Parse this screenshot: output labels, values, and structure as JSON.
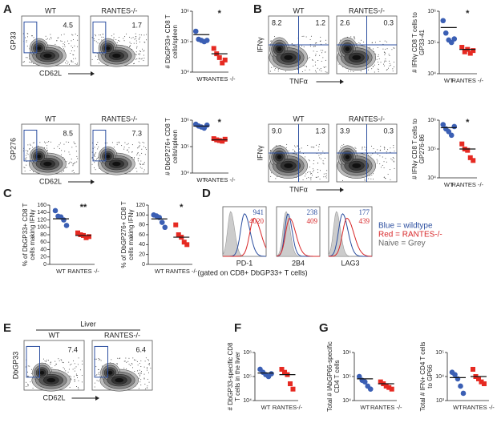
{
  "panel_labels": [
    "A",
    "B",
    "C",
    "D",
    "E",
    "F",
    "G"
  ],
  "flow_plots": [
    {
      "kind": "gate",
      "headers": [
        "WT",
        "RANTES-/-"
      ],
      "values": [
        "4.5",
        "1.7"
      ],
      "y_label": "GP33",
      "x_label": "CD62L"
    },
    {
      "kind": "gate",
      "headers": [
        "WT",
        "RANTES-/-"
      ],
      "values": [
        "8.5",
        "7.3"
      ],
      "y_label": "GP276",
      "x_label": "CD62L"
    },
    {
      "kind": "quadrant",
      "headers": [
        "WT",
        "RANTES-/-"
      ],
      "values": [
        [
          "8.2",
          "1.2"
        ],
        [
          "2.6",
          "0.3"
        ]
      ],
      "y_label": "IFNγ",
      "x_label": "TNFα"
    },
    {
      "kind": "quadrant",
      "headers": [
        "WT",
        "RANTES-/-"
      ],
      "values": [
        [
          "9.0",
          "1.3"
        ],
        [
          "3.9",
          "0.3"
        ]
      ],
      "y_label": "IFNγ",
      "x_label": "TNFα"
    },
    {
      "kind": "gate",
      "title": "Liver",
      "headers": [
        "WT",
        "RANTES-/-"
      ],
      "values": [
        "7.4",
        "6.4"
      ],
      "y_label": "DbGP33",
      "x_label": "CD62L"
    }
  ],
  "histograms": {
    "panels": [
      {
        "x_label": "PD-1",
        "values": [
          "941",
          "4020"
        ]
      },
      {
        "x_label": "2B4",
        "values": [
          "238",
          "409"
        ]
      },
      {
        "x_label": "LAG3",
        "values": [
          "177",
          "439"
        ]
      }
    ],
    "caption": "(gated on CD8+ DbGP33+ T cells)",
    "legend": [
      "Blue = wildtype",
      "Red = RANTES-/-",
      "Naive = Grey"
    ]
  },
  "chart_data": [
    {
      "type": "scatter",
      "y_label": [
        "# DbGP33+ CD8 T",
        "cells/spleen"
      ],
      "categories": [
        "WT",
        "RANTES -/-"
      ],
      "log_scale": true,
      "ylim": [
        10000,
        1000000
      ],
      "yticks": [
        {
          "value": 10000,
          "label": "10⁴"
        },
        {
          "value": 100000,
          "label": "10⁵"
        },
        {
          "value": 1000000,
          "label": "10⁶"
        }
      ],
      "significance": "*",
      "series": [
        {
          "color": "#3b5fb4",
          "marker": "circle",
          "values": [
            220000,
            120000,
            110000,
            100000,
            110000
          ],
          "mean": 170000
        },
        {
          "color": "#e62a22",
          "marker": "square",
          "values": [
            60000,
            40000,
            30000,
            20000,
            25000
          ],
          "mean": 40000
        }
      ]
    },
    {
      "type": "scatter",
      "y_label": [
        "# DbGP276+ CD8 T",
        "cells/spleen"
      ],
      "categories": [
        "WT",
        "RANTES -/-"
      ],
      "log_scale": true,
      "ylim": [
        10000,
        1000000
      ],
      "yticks": [
        {
          "value": 10000,
          "label": "10⁴"
        },
        {
          "value": 100000,
          "label": "10⁵"
        },
        {
          "value": 1000000,
          "label": "10⁶"
        }
      ],
      "significance": "*",
      "series": [
        {
          "color": "#3b5fb4",
          "marker": "circle",
          "values": [
            700000,
            600000,
            550000,
            500000,
            650000
          ],
          "mean": 600000
        },
        {
          "color": "#e62a22",
          "marker": "square",
          "values": [
            200000,
            180000,
            170000,
            160000,
            190000
          ],
          "mean": 180000
        }
      ]
    },
    {
      "type": "scatter",
      "y_label": [
        "# IFNγ CD8 T cells to",
        "GP33-41"
      ],
      "categories": [
        "WT",
        "RANTES -/-"
      ],
      "log_scale": true,
      "ylim": [
        10000,
        1000000
      ],
      "yticks": [
        {
          "value": 10000,
          "label": "10⁴"
        },
        {
          "value": 100000,
          "label": "10⁵"
        },
        {
          "value": 1000000,
          "label": "10⁶"
        }
      ],
      "significance": "*",
      "series": [
        {
          "color": "#3b5fb4",
          "marker": "circle",
          "values": [
            500000,
            200000,
            120000,
            100000,
            130000
          ],
          "mean": 300000
        },
        {
          "color": "#e62a22",
          "marker": "square",
          "values": [
            70000,
            50000,
            60000,
            45000,
            55000
          ],
          "mean": 60000
        }
      ]
    },
    {
      "type": "scatter",
      "y_label": [
        "# IFNγ CD8 T cells to",
        "GP276-86"
      ],
      "categories": [
        "WT",
        "RANTES -/-"
      ],
      "log_scale": true,
      "ylim": [
        10000,
        1000000
      ],
      "yticks": [
        {
          "value": 10000,
          "label": "10⁴"
        },
        {
          "value": 100000,
          "label": "10⁵"
        },
        {
          "value": 1000000,
          "label": "10⁶"
        }
      ],
      "significance": "*",
      "series": [
        {
          "color": "#3b5fb4",
          "marker": "circle",
          "values": [
            700000,
            500000,
            400000,
            300000,
            600000
          ],
          "mean": 550000
        },
        {
          "color": "#e62a22",
          "marker": "square",
          "values": [
            150000,
            100000,
            90000,
            50000,
            40000
          ],
          "mean": 100000
        }
      ]
    },
    {
      "type": "scatter",
      "y_label": [
        "% of DbGP33+ CD8 T",
        "cells making IFNγ"
      ],
      "categories": [
        "WT",
        "RANTES -/-"
      ],
      "log_scale": false,
      "ylim": [
        0,
        160
      ],
      "yticks": [
        0,
        20,
        40,
        60,
        80,
        100,
        120,
        140,
        160
      ],
      "significance": "**",
      "series": [
        {
          "color": "#3b5fb4",
          "marker": "circle",
          "values": [
            145,
            130,
            128,
            120,
            105
          ],
          "mean": 123
        },
        {
          "color": "#e62a22",
          "marker": "square",
          "values": [
            85,
            80,
            78,
            72,
            75
          ],
          "mean": 78
        }
      ]
    },
    {
      "type": "scatter",
      "y_label": [
        "% of DbGP276+ CD8 T",
        "cells making IFNγ"
      ],
      "categories": [
        "WT",
        "RANTES -/-"
      ],
      "log_scale": false,
      "ylim": [
        0,
        120
      ],
      "yticks": [
        0,
        20,
        40,
        60,
        80,
        100,
        120
      ],
      "significance": "*",
      "series": [
        {
          "color": "#3b5fb4",
          "marker": "circle",
          "values": [
            100,
            98,
            95,
            85,
            75
          ],
          "mean": 92
        },
        {
          "color": "#e62a22",
          "marker": "square",
          "values": [
            80,
            60,
            55,
            45,
            40
          ],
          "mean": 55
        }
      ]
    },
    {
      "type": "scatter",
      "y_label": [
        "# DbGP33-specific CD8",
        "T cells in the liver"
      ],
      "categories": [
        "WT",
        "RANTES-/-"
      ],
      "log_scale": true,
      "ylim": [
        10000,
        1000000
      ],
      "yticks": [
        {
          "value": 10000,
          "label": "10⁴"
        },
        {
          "value": 100000,
          "label": "10⁵"
        },
        {
          "value": 1000000,
          "label": "10⁶"
        }
      ],
      "series": [
        {
          "color": "#3b5fb4",
          "marker": "circle",
          "values": [
            200000,
            150000,
            120000,
            100000,
            130000
          ],
          "mean": 140000
        },
        {
          "color": "#e62a22",
          "marker": "square",
          "values": [
            200000,
            150000,
            120000,
            50000,
            30000
          ],
          "mean": 120000
        }
      ]
    },
    {
      "type": "scatter",
      "y_label": [
        "Total # IAbGP66-specific",
        "CD4 T cells"
      ],
      "categories": [
        "WT",
        "RANTES -/-"
      ],
      "log_scale": true,
      "ylim": [
        10000,
        1000000
      ],
      "yticks": [
        {
          "value": 10000,
          "label": "10⁴"
        },
        {
          "value": 100000,
          "label": "10⁵"
        },
        {
          "value": 1000000,
          "label": "10⁶"
        }
      ],
      "series": [
        {
          "color": "#3b5fb4",
          "marker": "circle",
          "values": [
            100000,
            70000,
            60000,
            40000,
            30000
          ],
          "mean": 80000
        },
        {
          "color": "#e62a22",
          "marker": "square",
          "values": [
            60000,
            50000,
            40000,
            35000,
            30000
          ],
          "mean": 50000
        }
      ]
    },
    {
      "type": "scatter",
      "y_label": [
        "Total # IFN+ CD4 T cells",
        "to GP66"
      ],
      "categories": [
        "WT",
        "RANTES -/-"
      ],
      "log_scale": true,
      "ylim": [
        1000,
        100000
      ],
      "yticks": [
        {
          "value": 1000,
          "label": "10³"
        },
        {
          "value": 10000,
          "label": "10⁴"
        },
        {
          "value": 100000,
          "label": "10⁵"
        }
      ],
      "series": [
        {
          "color": "#3b5fb4",
          "marker": "circle",
          "values": [
            15000,
            12000,
            8000,
            4000,
            2000
          ],
          "mean": 9000
        },
        {
          "color": "#e62a22",
          "marker": "square",
          "values": [
            20000,
            10000,
            8000,
            6000,
            5000
          ],
          "mean": 10000
        }
      ]
    }
  ]
}
